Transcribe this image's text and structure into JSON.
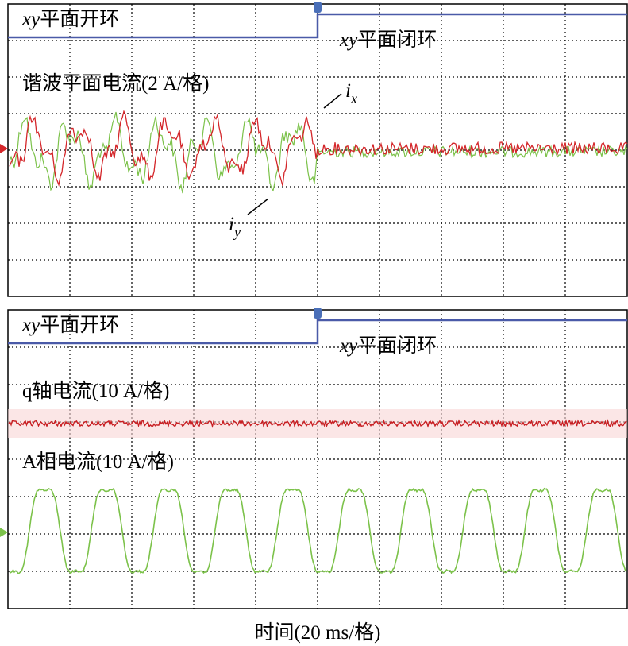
{
  "panels": [
    {
      "mode_left": {
        "var": "xy",
        "text": "平面开环"
      },
      "mode_right": {
        "var": "xy",
        "text": "平面闭环"
      },
      "trace_labels": [
        "谐波平面电流(2 A/格)"
      ],
      "curve_labels": [
        {
          "symbol": "i",
          "subscript": "x"
        },
        {
          "symbol": "i",
          "subscript": "y"
        }
      ]
    },
    {
      "mode_left": {
        "var": "xy",
        "text": "平面开环"
      },
      "mode_right": {
        "var": "xy",
        "text": "平面闭环"
      },
      "trace_labels": [
        "q轴电流(10 A/格)",
        "A相电流(10 A/格)"
      ]
    }
  ],
  "x_axis_label": "时间(20 ms/格)"
}
